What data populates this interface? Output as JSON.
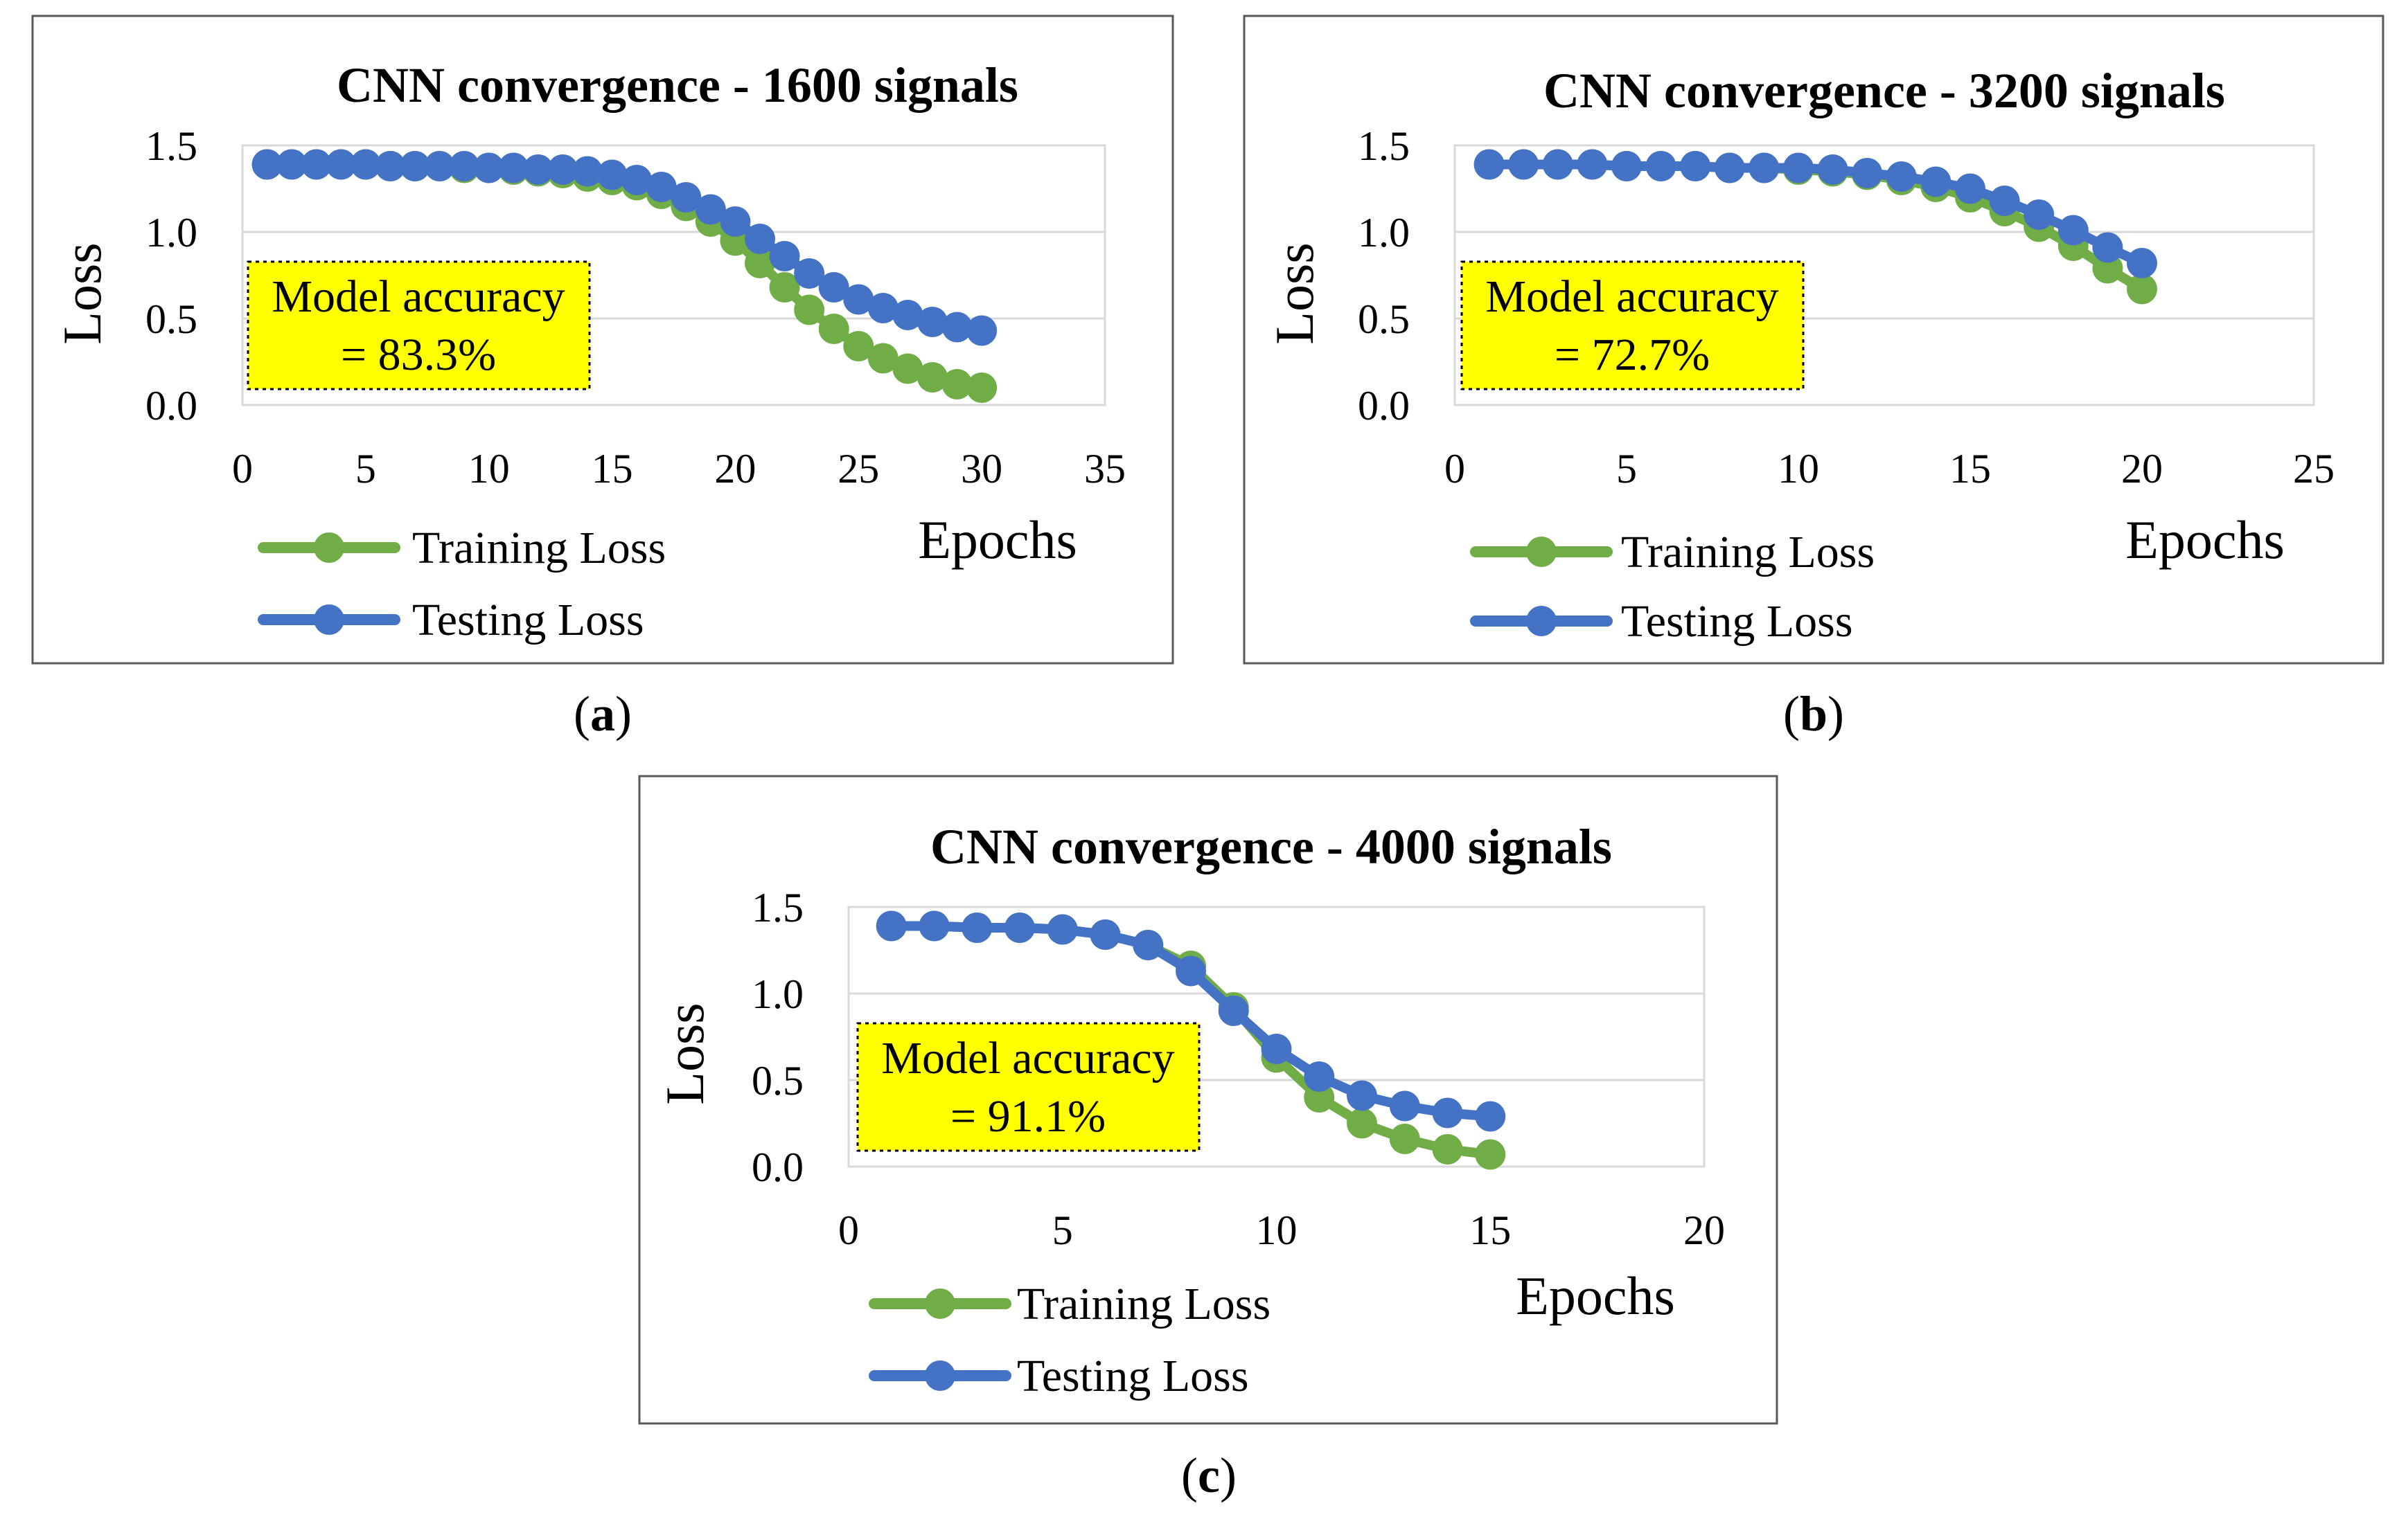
{
  "figure": {
    "panels": [
      {
        "caption_open": "(",
        "caption_letter": "a",
        "caption_close": ")"
      },
      {
        "caption_open": "(",
        "caption_letter": "b",
        "caption_close": ")"
      },
      {
        "caption_open": "(",
        "caption_letter": "c",
        "caption_close": ")"
      }
    ]
  },
  "chart_data": [
    {
      "type": "line",
      "title": "CNN convergence - 1600 signals",
      "xlabel": "Epochs",
      "ylabel": "Loss",
      "xlim": [
        0,
        35
      ],
      "ylim": [
        0,
        1.5
      ],
      "x_ticks": [
        0,
        5,
        10,
        15,
        20,
        25,
        30,
        35
      ],
      "y_ticks": [
        "0.0",
        "0.5",
        "1.0",
        "1.5"
      ],
      "grid": true,
      "legend_position": "bottom-left",
      "annotation": {
        "line1": "Model accuracy",
        "line2": "= 83.3%"
      },
      "x": [
        1,
        2,
        3,
        4,
        5,
        6,
        7,
        8,
        9,
        10,
        11,
        12,
        13,
        14,
        15,
        16,
        17,
        18,
        19,
        20,
        21,
        22,
        23,
        24,
        25,
        26,
        27,
        28,
        29,
        30
      ],
      "series": [
        {
          "name": "Training Loss",
          "color": "#70ad47",
          "values": [
            1.39,
            1.39,
            1.39,
            1.39,
            1.39,
            1.38,
            1.38,
            1.38,
            1.37,
            1.37,
            1.36,
            1.35,
            1.34,
            1.32,
            1.3,
            1.27,
            1.22,
            1.15,
            1.06,
            0.95,
            0.82,
            0.68,
            0.55,
            0.44,
            0.34,
            0.27,
            0.21,
            0.16,
            0.12,
            0.1
          ]
        },
        {
          "name": "Testing Loss",
          "color": "#4472c4",
          "values": [
            1.39,
            1.39,
            1.39,
            1.39,
            1.39,
            1.38,
            1.38,
            1.38,
            1.38,
            1.37,
            1.37,
            1.36,
            1.36,
            1.35,
            1.33,
            1.3,
            1.26,
            1.2,
            1.13,
            1.06,
            0.96,
            0.86,
            0.76,
            0.68,
            0.61,
            0.56,
            0.52,
            0.48,
            0.45,
            0.43
          ]
        }
      ]
    },
    {
      "type": "line",
      "title": "CNN convergence - 3200 signals",
      "xlabel": "Epochs",
      "ylabel": "Loss",
      "xlim": [
        0,
        25
      ],
      "ylim": [
        0,
        1.5
      ],
      "x_ticks": [
        0,
        5,
        10,
        15,
        20,
        25
      ],
      "y_ticks": [
        "0.0",
        "0.5",
        "1.0",
        "1.5"
      ],
      "grid": true,
      "legend_position": "bottom-left",
      "annotation": {
        "line1": "Model accuracy",
        "line2": "= 72.7%"
      },
      "x": [
        1,
        2,
        3,
        4,
        5,
        6,
        7,
        8,
        9,
        10,
        11,
        12,
        13,
        14,
        15,
        16,
        17,
        18,
        19,
        20
      ],
      "series": [
        {
          "name": "Training Loss",
          "color": "#70ad47",
          "values": [
            1.39,
            1.39,
            1.39,
            1.39,
            1.38,
            1.38,
            1.38,
            1.37,
            1.37,
            1.36,
            1.35,
            1.33,
            1.3,
            1.26,
            1.2,
            1.12,
            1.03,
            0.92,
            0.79,
            0.67
          ]
        },
        {
          "name": "Testing Loss",
          "color": "#4472c4",
          "values": [
            1.39,
            1.39,
            1.39,
            1.39,
            1.38,
            1.38,
            1.38,
            1.37,
            1.37,
            1.37,
            1.36,
            1.34,
            1.32,
            1.29,
            1.25,
            1.18,
            1.1,
            1.01,
            0.91,
            0.82
          ]
        }
      ]
    },
    {
      "type": "line",
      "title": "CNN convergence - 4000 signals",
      "xlabel": "Epochs",
      "ylabel": "Loss",
      "xlim": [
        0,
        20
      ],
      "ylim": [
        0,
        1.5
      ],
      "x_ticks": [
        0,
        5,
        10,
        15,
        20
      ],
      "y_ticks": [
        "0.0",
        "0.5",
        "1.0",
        "1.5"
      ],
      "grid": true,
      "legend_position": "bottom-left",
      "annotation": {
        "line1": "Model accuracy",
        "line2": "= 91.1%"
      },
      "x": [
        1,
        2,
        3,
        4,
        5,
        6,
        7,
        8,
        9,
        10,
        11,
        12,
        13,
        14,
        15
      ],
      "series": [
        {
          "name": "Training Loss",
          "color": "#70ad47",
          "values": [
            1.39,
            1.39,
            1.38,
            1.38,
            1.37,
            1.34,
            1.28,
            1.16,
            0.92,
            0.63,
            0.4,
            0.25,
            0.16,
            0.1,
            0.07
          ]
        },
        {
          "name": "Testing Loss",
          "color": "#4472c4",
          "values": [
            1.39,
            1.39,
            1.38,
            1.38,
            1.37,
            1.34,
            1.28,
            1.13,
            0.9,
            0.68,
            0.52,
            0.41,
            0.35,
            0.31,
            0.29
          ]
        }
      ]
    }
  ]
}
